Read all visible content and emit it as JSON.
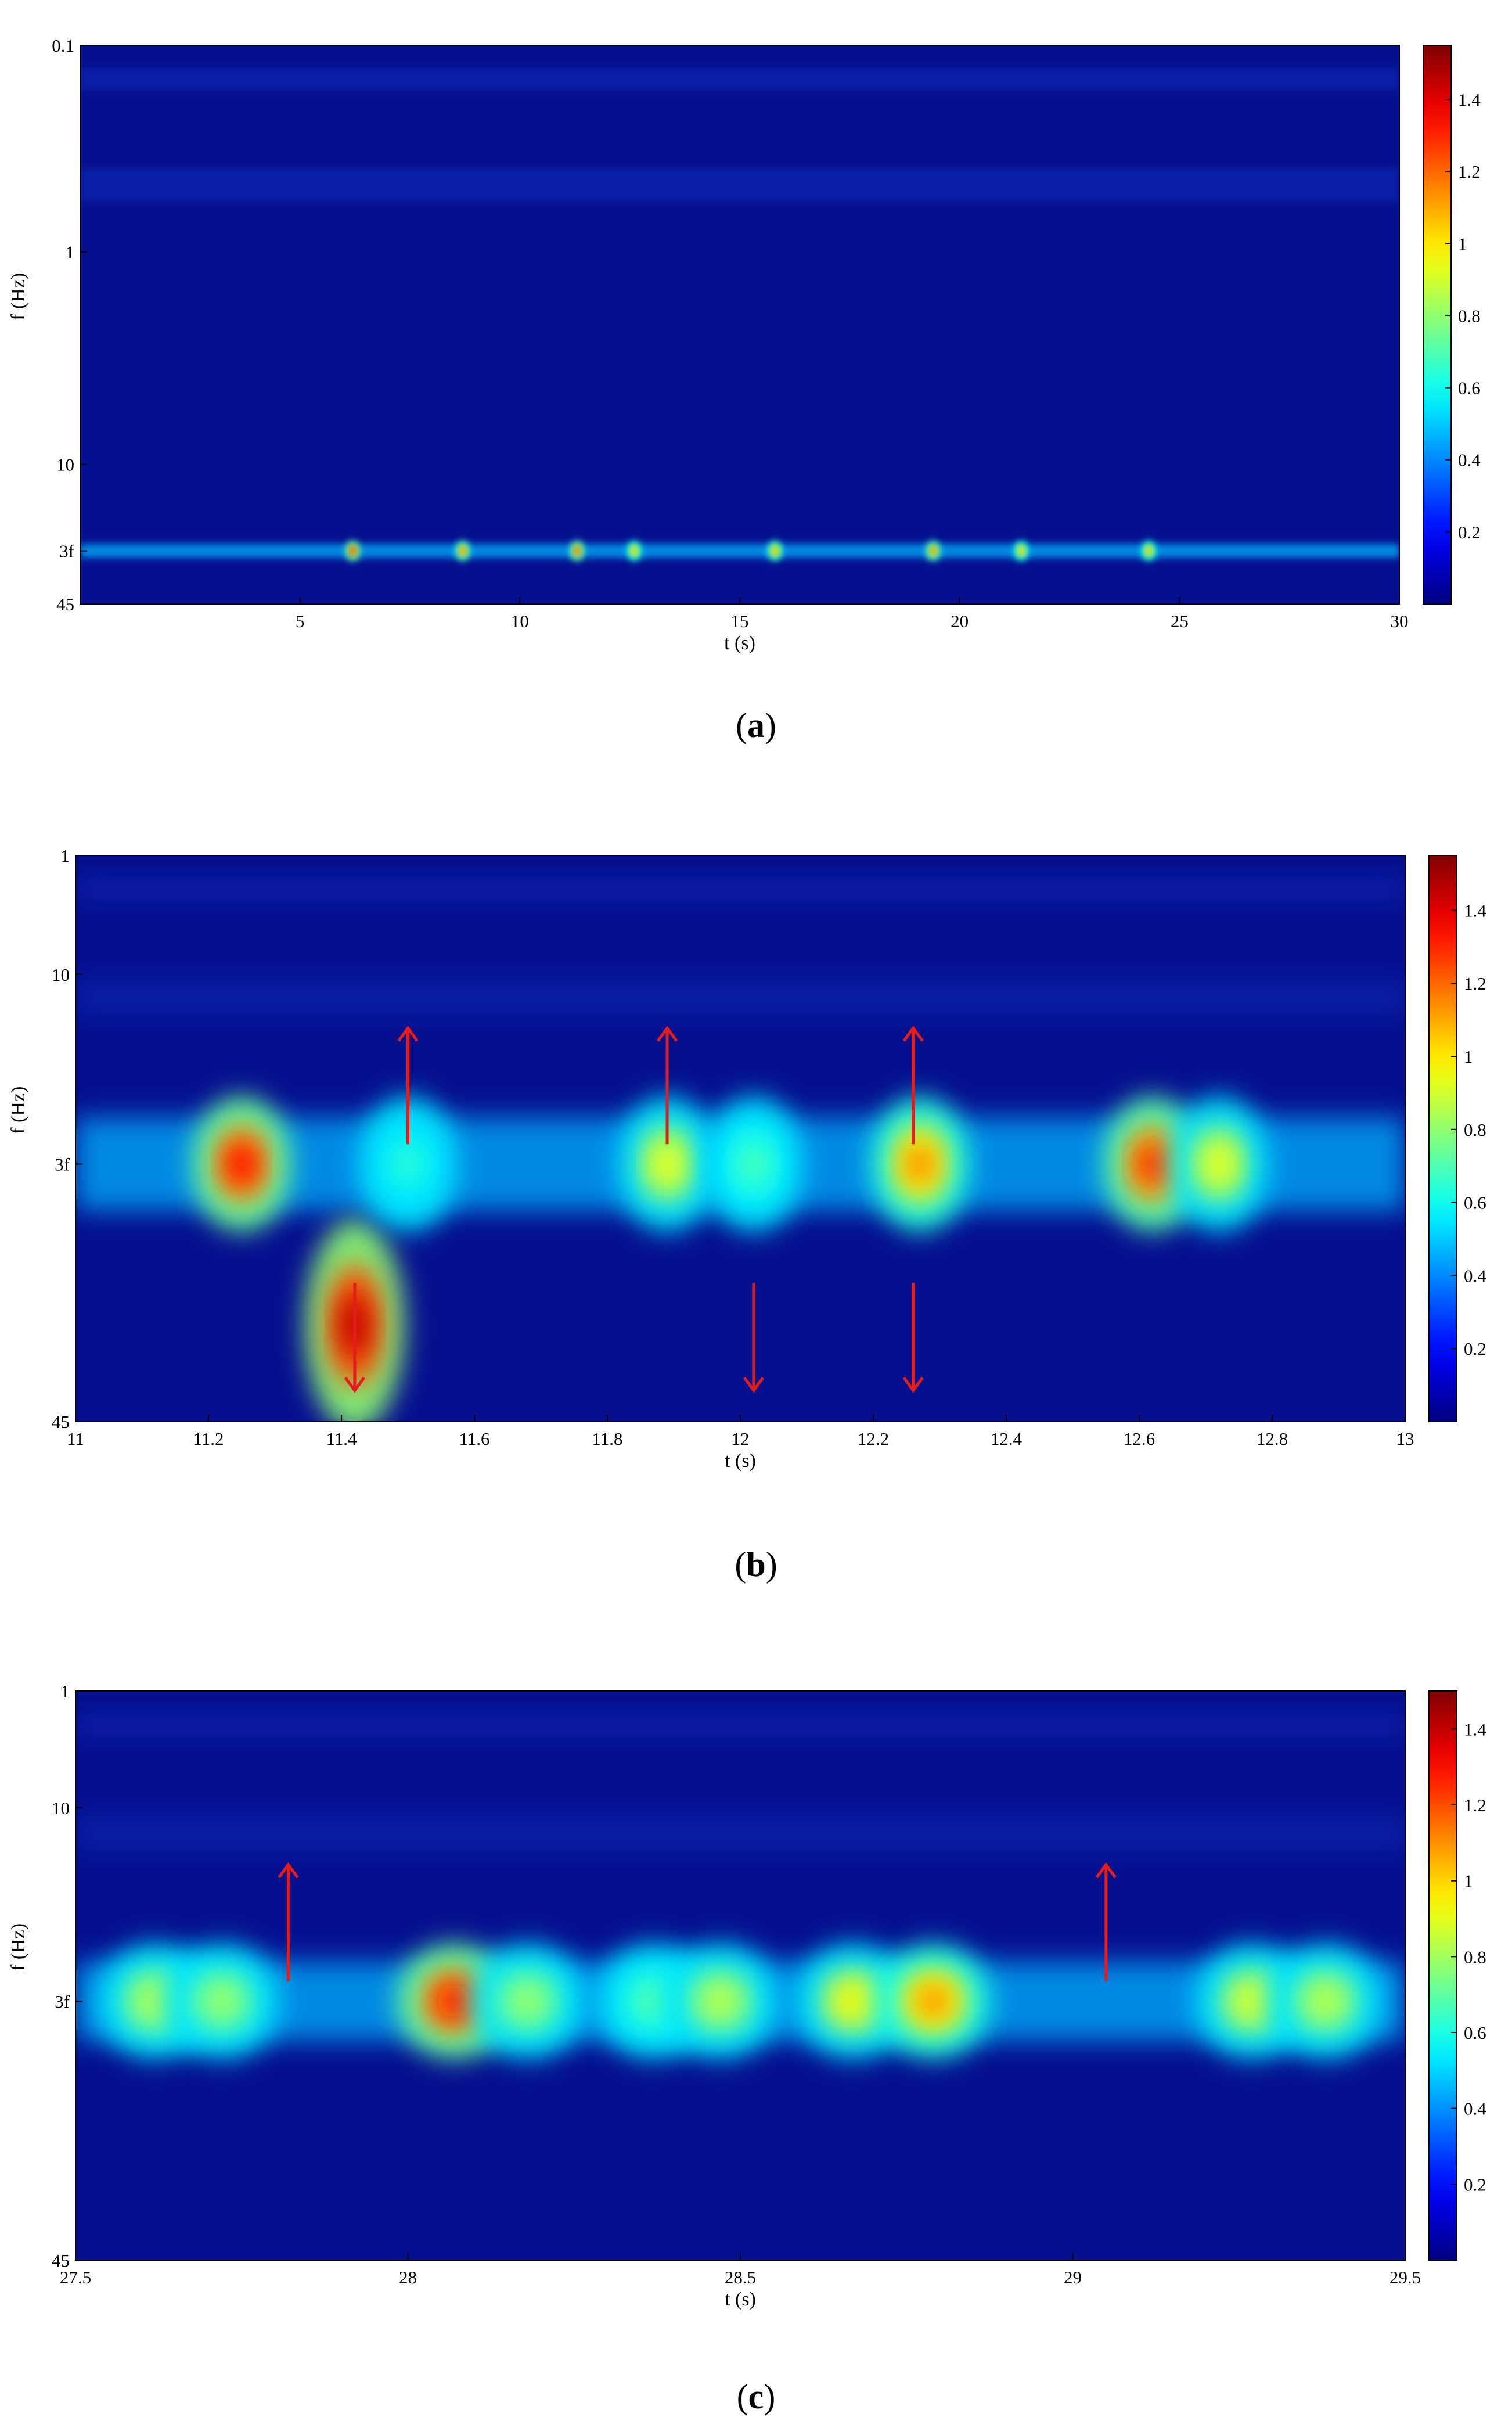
{
  "chart_data": [
    {
      "type": "heatmap",
      "panel_label": "a",
      "xlabel": "t (s)",
      "ylabel": "f (Hz)",
      "xlim": [
        0,
        30
      ],
      "xticks": [
        5,
        10,
        15,
        20,
        25,
        30
      ],
      "yticks": [
        "0.1",
        "1",
        "10",
        "3f",
        "45"
      ],
      "colorbar": {
        "min": 0,
        "max": 1.55,
        "ticks": [
          0.2,
          0.4,
          0.6,
          0.8,
          1,
          1.2,
          1.4
        ],
        "colormap": "jet"
      },
      "hotspots": [
        {
          "t": 6.2,
          "f": "3f",
          "value": 1.3
        },
        {
          "t": 8.7,
          "f": "3f",
          "value": 1.2
        },
        {
          "t": 11.3,
          "f": "3f",
          "value": 1.25
        },
        {
          "t": 12.6,
          "f": "3f",
          "value": 1.1
        },
        {
          "t": 15.8,
          "f": "3f",
          "value": 1.15
        },
        {
          "t": 19.4,
          "f": "3f",
          "value": 1.2
        },
        {
          "t": 21.4,
          "f": "3f",
          "value": 1.1
        },
        {
          "t": 24.3,
          "f": "3f",
          "value": 1.1
        }
      ],
      "arrows": []
    },
    {
      "type": "heatmap",
      "panel_label": "b",
      "xlabel": "t (s)",
      "ylabel": "f (Hz)",
      "xlim": [
        11,
        13
      ],
      "xticks": [
        11,
        11.2,
        11.4,
        11.6,
        11.8,
        12,
        12.2,
        12.4,
        12.6,
        12.8,
        13
      ],
      "yticks": [
        "1",
        "10",
        "3f",
        "45"
      ],
      "colorbar": {
        "min": 0,
        "max": 1.55,
        "ticks": [
          0.2,
          0.4,
          0.6,
          0.8,
          1,
          1.2,
          1.4
        ],
        "colormap": "jet"
      },
      "hotspots": [
        {
          "t": 11.25,
          "f": "3f",
          "value": 1.35
        },
        {
          "t": 11.42,
          "f": "below 3f",
          "value": 1.45
        },
        {
          "t": 11.5,
          "f": "3f",
          "value": 0.65
        },
        {
          "t": 11.89,
          "f": "3f",
          "value": 0.95
        },
        {
          "t": 12.02,
          "f": "3f",
          "value": 0.7
        },
        {
          "t": 12.27,
          "f": "3f",
          "value": 1.15
        },
        {
          "t": 12.62,
          "f": "3f",
          "value": 1.3
        },
        {
          "t": 12.72,
          "f": "3f",
          "value": 0.95
        }
      ],
      "arrows": [
        {
          "t": 11.42,
          "direction": "down"
        },
        {
          "t": 11.5,
          "direction": "up"
        },
        {
          "t": 11.89,
          "direction": "up"
        },
        {
          "t": 12.02,
          "direction": "down"
        },
        {
          "t": 12.26,
          "direction": "up"
        },
        {
          "t": 12.26,
          "direction": "down"
        }
      ]
    },
    {
      "type": "heatmap",
      "panel_label": "c",
      "xlabel": "t (s)",
      "ylabel": "f (Hz)",
      "xlim": [
        27.5,
        29.5
      ],
      "xticks": [
        27.5,
        28,
        28.5,
        29,
        29.5
      ],
      "yticks": [
        "1",
        "10",
        "3f",
        "45"
      ],
      "colorbar": {
        "min": 0,
        "max": 1.5,
        "ticks": [
          0.2,
          0.4,
          0.6,
          0.8,
          1,
          1.2,
          1.4
        ],
        "colormap": "jet"
      },
      "hotspots": [
        {
          "t": 27.62,
          "f": "3f",
          "value": 0.85
        },
        {
          "t": 27.72,
          "f": "3f",
          "value": 0.8
        },
        {
          "t": 28.07,
          "f": "3f",
          "value": 1.3
        },
        {
          "t": 28.18,
          "f": "3f",
          "value": 0.8
        },
        {
          "t": 28.37,
          "f": "3f",
          "value": 0.7
        },
        {
          "t": 28.47,
          "f": "3f",
          "value": 0.85
        },
        {
          "t": 28.67,
          "f": "3f",
          "value": 0.95
        },
        {
          "t": 28.79,
          "f": "3f",
          "value": 1.1
        },
        {
          "t": 29.27,
          "f": "3f",
          "value": 0.9
        },
        {
          "t": 29.38,
          "f": "3f",
          "value": 0.85
        }
      ],
      "arrows": [
        {
          "t": 27.82,
          "direction": "up"
        },
        {
          "t": 29.05,
          "direction": "up"
        }
      ]
    }
  ]
}
